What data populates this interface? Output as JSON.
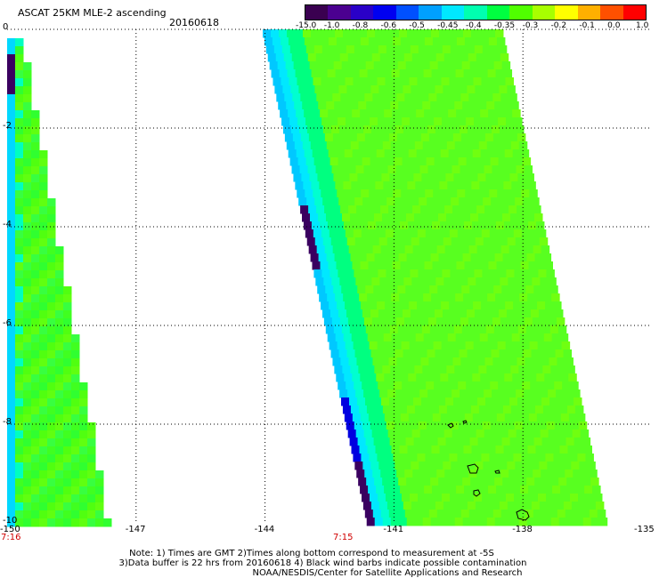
{
  "header": {
    "title": "ASCAT 25KM MLE-2 ascending",
    "date": "20160618"
  },
  "colorbar": {
    "labels": [
      "-15.0",
      "-1.0",
      "-0.8",
      "-0.6",
      "-0.5",
      "-0.45",
      "-0.4",
      "-0.35",
      "-0.3",
      "-0.2",
      "-0.1",
      "0.0",
      "1.0"
    ],
    "colors": [
      "#3a0050",
      "#4b0090",
      "#2a00c8",
      "#0000f0",
      "#0050ff",
      "#00a0ff",
      "#00e8ff",
      "#00ffb0",
      "#00ff40",
      "#50ff00",
      "#a8ff00",
      "#ffff00",
      "#ffb000",
      "#ff5000",
      "#ff0000"
    ]
  },
  "axes": {
    "x_ticks": [
      "-150",
      "-147",
      "-144",
      "-141",
      "-138",
      "-135"
    ],
    "y_ticks": [
      "0",
      "-2",
      "-4",
      "-6",
      "-8",
      "-10"
    ]
  },
  "times": {
    "left": "7:16",
    "middle": "7:15"
  },
  "notes": {
    "line1": "Note: 1) Times are GMT 2)Times along bottom correspond to measurement at -5S",
    "line2": "3)Data buffer is 22 hrs from 20160618 4) Black wind barbs indicate possible contamination",
    "line3": "NOAA/NESDIS/Center for Satellite Applications and Research"
  }
}
